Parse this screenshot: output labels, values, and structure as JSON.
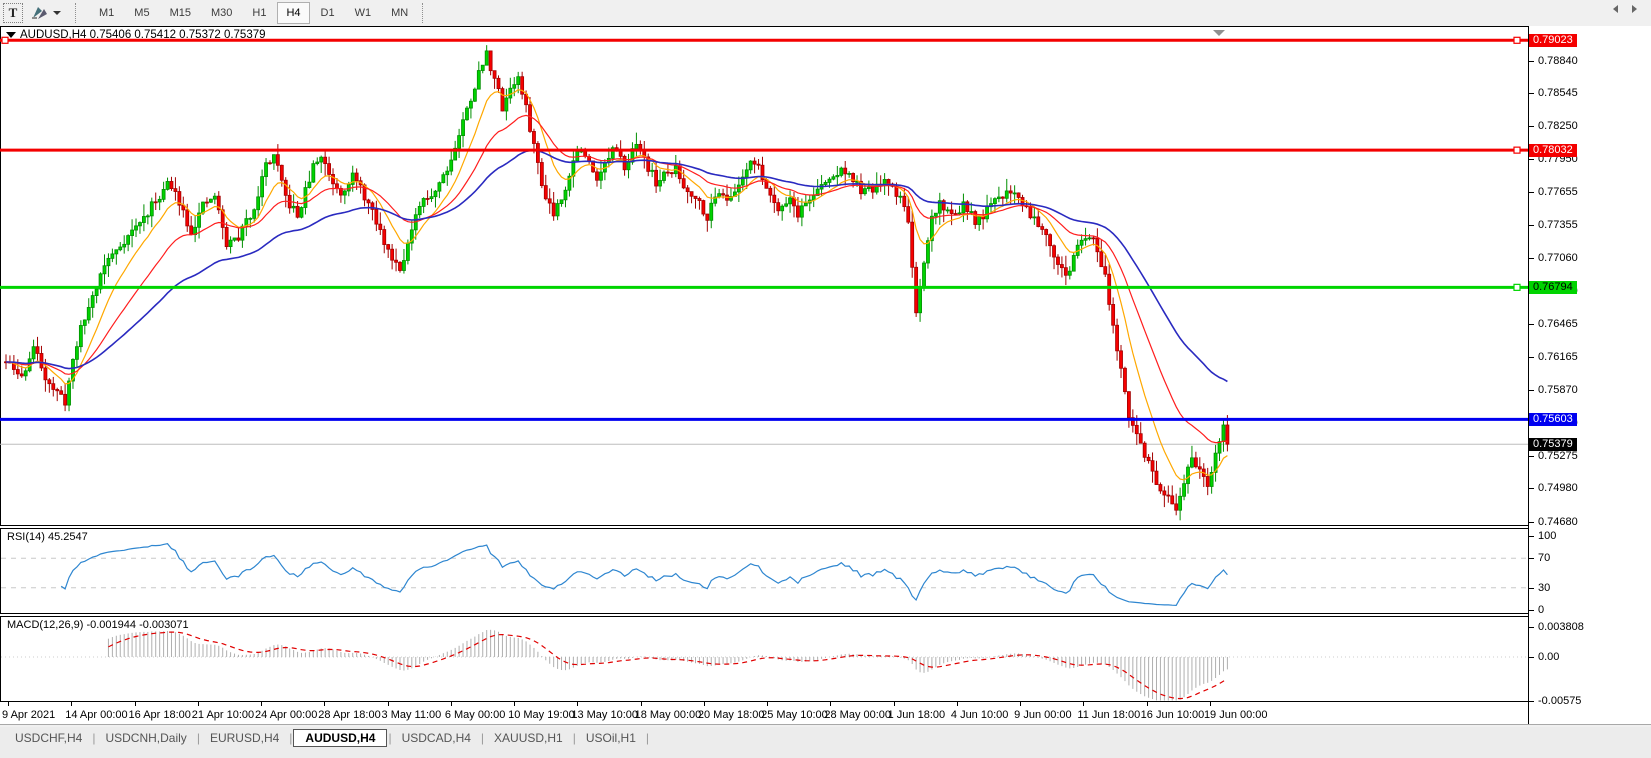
{
  "toolbar": {
    "text_tool_label": "T",
    "timeframes": [
      "M1",
      "M5",
      "M15",
      "M30",
      "H1",
      "H4",
      "D1",
      "W1",
      "MN"
    ],
    "active_timeframe": "H4"
  },
  "chart": {
    "title": "AUDUSD,H4  0.75406 0.75412 0.75372 0.75379",
    "symbol": "AUDUSD",
    "timeframe": "H4"
  },
  "chart_data": {
    "type": "candlestick",
    "symbol": "AUDUSD",
    "period": "H4",
    "ohlc_current": {
      "open": "0.75406",
      "high": "0.75412",
      "low": "0.75372",
      "close": "0.75379"
    },
    "y_axis": {
      "top": 0.79152,
      "bottom": 0.74641,
      "ticks": [
        "0.78840",
        "0.78545",
        "0.78250",
        "0.77950",
        "0.77655",
        "0.77355",
        "0.77060",
        "0.76760",
        "0.76465",
        "0.76165",
        "0.75870",
        "0.75570",
        "0.75275",
        "0.74980",
        "0.74680"
      ]
    },
    "time_labels": [
      "9 Apr 2021",
      "14 Apr 00:00",
      "16 Apr 18:00",
      "21 Apr 10:00",
      "24 Apr 00:00",
      "28 Apr 18:00",
      "3 May 11:00",
      "6 May 00:00",
      "10 May 19:00",
      "13 May 10:00",
      "18 May 00:00",
      "20 May 18:00",
      "25 May 10:00",
      "28 May 00:00",
      "1 Jun 18:00",
      "4 Jun 10:00",
      "9 Jun 00:00",
      "11 Jun 18:00",
      "16 Jun 10:00",
      "19 Jun 00:00"
    ],
    "hlines": [
      {
        "label": "0.79023",
        "value": 0.79023,
        "color": "#f40000",
        "text_color": "#ffffff",
        "thickness": 3,
        "handle_left": true,
        "handle_right": true
      },
      {
        "label": "0.78032",
        "value": 0.78032,
        "color": "#f40000",
        "text_color": "#ffffff",
        "thickness": 3,
        "handle_left": false,
        "handle_right": true
      },
      {
        "label": "0.76794",
        "value": 0.76794,
        "color": "#00d400",
        "text_color": "#000000",
        "thickness": 3,
        "handle_left": false,
        "handle_right": true
      },
      {
        "label": "0.75603",
        "value": 0.75603,
        "color": "#0000f0",
        "text_color": "#ffffff",
        "thickness": 3,
        "handle_left": false,
        "handle_right": false
      }
    ],
    "current_price": {
      "label": "0.75379",
      "value": 0.75379,
      "line_color": "#bdbdbd",
      "badge_color": "#000000",
      "text_color": "#ffffff"
    },
    "candles": {
      "count": 311,
      "seed": 11,
      "noise": 0.0009,
      "wick": 0.0011,
      "last_close": 0.75379,
      "up_fill": "#00d300",
      "up_stroke": "#008f00",
      "down_fill": "#f60000",
      "down_stroke": "#a30000",
      "anchors": [
        [
          0,
          0.7612
        ],
        [
          4,
          0.7598
        ],
        [
          7,
          0.7625
        ],
        [
          10,
          0.76
        ],
        [
          13,
          0.7583
        ],
        [
          15,
          0.7577
        ],
        [
          18,
          0.763
        ],
        [
          21,
          0.7662
        ],
        [
          25,
          0.77
        ],
        [
          30,
          0.7722
        ],
        [
          35,
          0.7742
        ],
        [
          41,
          0.7773
        ],
        [
          44,
          0.7758
        ],
        [
          47,
          0.773
        ],
        [
          50,
          0.7752
        ],
        [
          53,
          0.7762
        ],
        [
          56,
          0.7718
        ],
        [
          59,
          0.7725
        ],
        [
          63,
          0.7752
        ],
        [
          66,
          0.779
        ],
        [
          68,
          0.7798
        ],
        [
          71,
          0.776
        ],
        [
          74,
          0.7743
        ],
        [
          78,
          0.7788
        ],
        [
          80,
          0.7798
        ],
        [
          83,
          0.7775
        ],
        [
          85,
          0.7766
        ],
        [
          88,
          0.778
        ],
        [
          91,
          0.7762
        ],
        [
          93,
          0.7746
        ],
        [
          97,
          0.7712
        ],
        [
          100,
          0.7698
        ],
        [
          102,
          0.7718
        ],
        [
          105,
          0.7752
        ],
        [
          109,
          0.7768
        ],
        [
          113,
          0.7795
        ],
        [
          117,
          0.784
        ],
        [
          120,
          0.7872
        ],
        [
          122,
          0.789
        ],
        [
          124,
          0.7868
        ],
        [
          126,
          0.7842
        ],
        [
          128,
          0.786
        ],
        [
          130,
          0.7868
        ],
        [
          132,
          0.784
        ],
        [
          134,
          0.7808
        ],
        [
          136,
          0.7772
        ],
        [
          139,
          0.7747
        ],
        [
          141,
          0.7762
        ],
        [
          143,
          0.778
        ],
        [
          145,
          0.7805
        ],
        [
          148,
          0.7792
        ],
        [
          150,
          0.778
        ],
        [
          152,
          0.779
        ],
        [
          154,
          0.7803
        ],
        [
          157,
          0.779
        ],
        [
          159,
          0.7803
        ],
        [
          161,
          0.7806
        ],
        [
          163,
          0.7788
        ],
        [
          165,
          0.7774
        ],
        [
          168,
          0.7782
        ],
        [
          170,
          0.7786
        ],
        [
          172,
          0.777
        ],
        [
          175,
          0.7762
        ],
        [
          178,
          0.7744
        ],
        [
          181,
          0.7768
        ],
        [
          184,
          0.7758
        ],
        [
          187,
          0.778
        ],
        [
          189,
          0.7796
        ],
        [
          192,
          0.778
        ],
        [
          194,
          0.7762
        ],
        [
          196,
          0.7752
        ],
        [
          199,
          0.776
        ],
        [
          201,
          0.7746
        ],
        [
          204,
          0.776
        ],
        [
          207,
          0.777
        ],
        [
          210,
          0.778
        ],
        [
          213,
          0.7786
        ],
        [
          215,
          0.7775
        ],
        [
          218,
          0.7764
        ],
        [
          221,
          0.777
        ],
        [
          224,
          0.7774
        ],
        [
          227,
          0.776
        ],
        [
          229,
          0.7742
        ],
        [
          231,
          0.7652
        ],
        [
          233,
          0.7698
        ],
        [
          235,
          0.7742
        ],
        [
          237,
          0.7756
        ],
        [
          240,
          0.7744
        ],
        [
          243,
          0.7754
        ],
        [
          246,
          0.7738
        ],
        [
          249,
          0.7748
        ],
        [
          252,
          0.776
        ],
        [
          255,
          0.7768
        ],
        [
          258,
          0.7756
        ],
        [
          261,
          0.7742
        ],
        [
          264,
          0.773
        ],
        [
          266,
          0.771
        ],
        [
          269,
          0.7688
        ],
        [
          271,
          0.7705
        ],
        [
          273,
          0.7726
        ],
        [
          275,
          0.7728
        ],
        [
          277,
          0.7712
        ],
        [
          279,
          0.7692
        ],
        [
          281,
          0.7645
        ],
        [
          283,
          0.7602
        ],
        [
          285,
          0.756
        ],
        [
          287,
          0.7548
        ],
        [
          289,
          0.753
        ],
        [
          291,
          0.7512
        ],
        [
          293,
          0.7492
        ],
        [
          295,
          0.7488
        ],
        [
          297,
          0.7474
        ],
        [
          299,
          0.7504
        ],
        [
          301,
          0.7528
        ],
        [
          303,
          0.7514
        ],
        [
          305,
          0.7496
        ],
        [
          307,
          0.753
        ],
        [
          309,
          0.7556
        ],
        [
          310,
          0.75379
        ]
      ]
    },
    "moving_averages": [
      {
        "name": "fast",
        "period": 10,
        "color": "#ffa800"
      },
      {
        "name": "medium",
        "period": 25,
        "color": "#ff1e1e"
      },
      {
        "name": "slow",
        "period": 55,
        "color": "#2a2ac0"
      }
    ],
    "rsi": {
      "label": "RSI(14) 45.2547",
      "period": 14,
      "value": "45.2547",
      "levels": [
        {
          "label": "100",
          "v": 100
        },
        {
          "label": "70",
          "v": 70
        },
        {
          "label": "30",
          "v": 30
        },
        {
          "label": "0",
          "v": 0
        }
      ],
      "dashed_levels": [
        70,
        30
      ],
      "color": "#2e86d0"
    },
    "macd": {
      "label": "MACD(12,26,9) -0.001944 -0.003071",
      "fast": 12,
      "slow": 26,
      "signal": 9,
      "values": [
        "-0.001944",
        "-0.003071"
      ],
      "ticks": [
        {
          "label": "0.003808",
          "v": 0.003808
        },
        {
          "label": "0.00",
          "v": 0
        },
        {
          "label": "-0.00575",
          "v": -0.00575
        }
      ],
      "hist_color": "#afafaf",
      "signal_color": "#e00000"
    }
  },
  "tabs": {
    "items": [
      {
        "label": "USDCHF,H4",
        "active": false
      },
      {
        "label": "USDCNH,Daily",
        "active": false
      },
      {
        "label": "EURUSD,H4",
        "active": false
      },
      {
        "label": "AUDUSD,H4",
        "active": true
      },
      {
        "label": "USDCAD,H4",
        "active": false
      },
      {
        "label": "XAUUSD,H1",
        "active": false
      },
      {
        "label": "USOil,H1",
        "active": false
      }
    ]
  }
}
